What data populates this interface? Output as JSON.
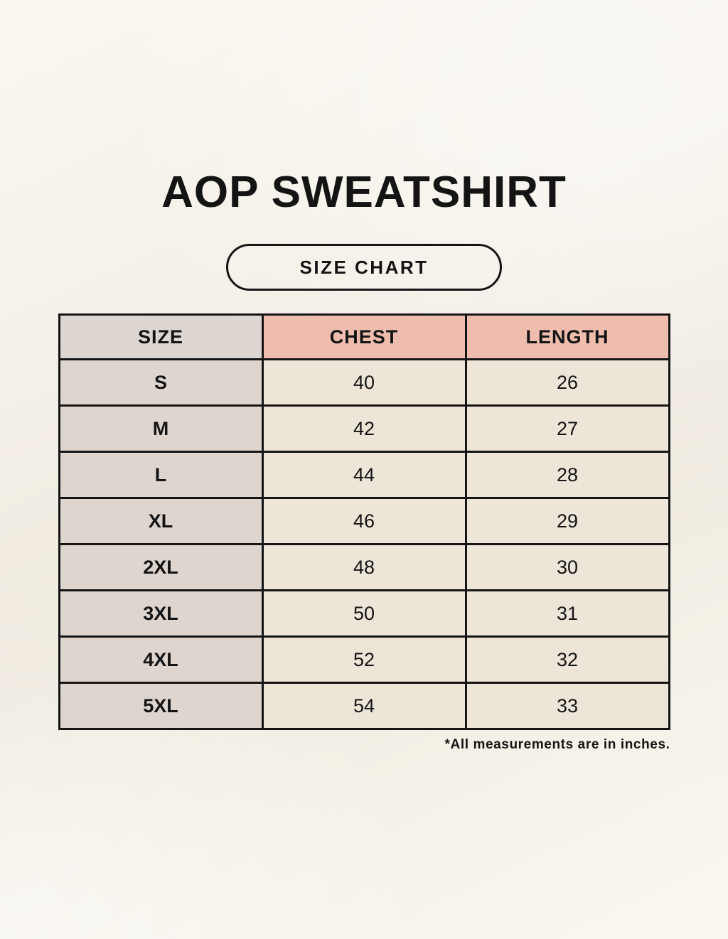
{
  "page": {
    "title": "AOP SWEATSHIRT",
    "badge_label": "SIZE CHART",
    "footnote": "*All measurements are in inches."
  },
  "chart_data": {
    "type": "table",
    "title": "AOP SWEATSHIRT",
    "subtitle": "SIZE CHART",
    "columns": [
      "SIZE",
      "CHEST",
      "LENGTH"
    ],
    "rows": [
      [
        "S",
        "40",
        "26"
      ],
      [
        "M",
        "42",
        "27"
      ],
      [
        "L",
        "44",
        "28"
      ],
      [
        "XL",
        "46",
        "29"
      ],
      [
        "2XL",
        "48",
        "30"
      ],
      [
        "3XL",
        "50",
        "31"
      ],
      [
        "4XL",
        "52",
        "32"
      ],
      [
        "5XL",
        "54",
        "33"
      ]
    ],
    "units_note": "*All measurements are in inches."
  },
  "colors": {
    "text": "#141414",
    "border": "#151515",
    "size_header_bg": "#ded7d1",
    "measure_header_bg": "#eebdae",
    "size_col_bg": "#ddd5ce",
    "data_cell_bg": "#ece5d8"
  }
}
